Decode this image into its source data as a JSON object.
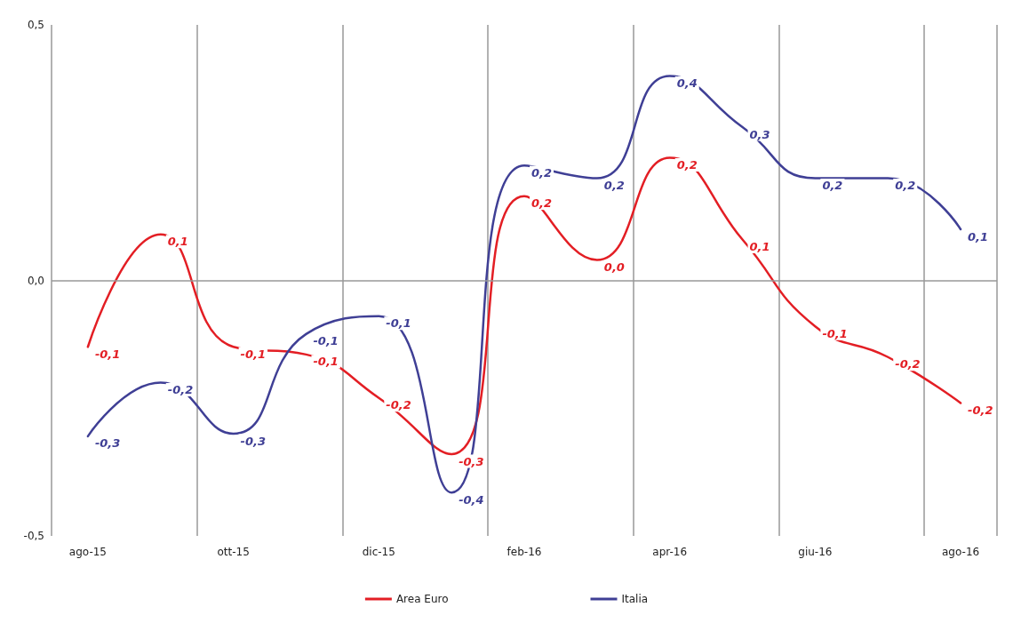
{
  "chart_data": {
    "type": "line",
    "categories": [
      "ago-15",
      null,
      "ott-15",
      null,
      "dic-15",
      null,
      "feb-16",
      null,
      "apr-16",
      null,
      "giu-16",
      null,
      "ago-16"
    ],
    "series": [
      {
        "name": "Area Euro",
        "color": "#e31e24",
        "values": [
          -0.13,
          0.09,
          -0.13,
          -0.145,
          -0.23,
          -0.34,
          0.165,
          0.04,
          0.24,
          0.08,
          -0.09,
          -0.15,
          -0.24
        ],
        "value_labels": [
          "-0,1",
          "0,1",
          "-0,1",
          "-0,1",
          "-0,2",
          "-0,3",
          "0,2",
          "0,0",
          "0,2",
          "0,1",
          "-0,1",
          "-0,2",
          "-0,2"
        ]
      },
      {
        "name": "Italia",
        "color": "#3f3f95",
        "values": [
          -0.305,
          -0.2,
          -0.3,
          -0.105,
          -0.07,
          -0.415,
          0.225,
          0.2,
          0.4,
          0.3,
          0.2,
          0.2,
          0.1
        ],
        "value_labels": [
          "-0,3",
          "-0,2",
          "-0,3",
          "-0,1",
          "-0,1",
          "-0,4",
          "0,2",
          "0,2",
          "0,4",
          "0,3",
          "0,2",
          "0,2",
          "0,1"
        ]
      }
    ],
    "ylim": [
      -0.5,
      0.5
    ],
    "yticks": [
      {
        "value": -0.5,
        "label": "-0,5"
      },
      {
        "value": 0,
        "label": "0,0"
      },
      {
        "value": 0.5,
        "label": "0,5"
      }
    ],
    "ref_lines": [
      {
        "axis": "y",
        "value": 0,
        "color": "#999999"
      }
    ],
    "grid": "x",
    "legend": "bottom",
    "marker": "none",
    "line_style": "solid"
  }
}
